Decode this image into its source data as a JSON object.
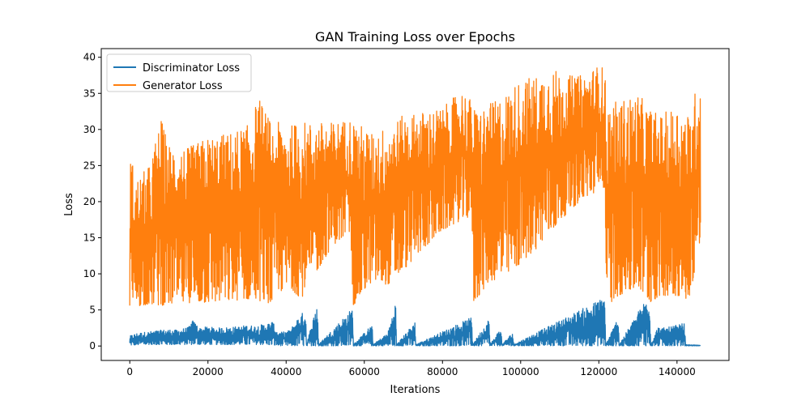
{
  "chart_data": {
    "type": "line",
    "title": "GAN Training Loss over Epochs",
    "xlabel": "Iterations",
    "ylabel": "Loss",
    "xlim": [
      -7300,
      153300
    ],
    "ylim": [
      -2.0,
      41.2
    ],
    "xticks": [
      0,
      20000,
      40000,
      60000,
      80000,
      100000,
      120000,
      140000
    ],
    "xtick_labels": [
      "0",
      "20000",
      "40000",
      "60000",
      "80000",
      "100000",
      "120000",
      "140000"
    ],
    "yticks": [
      0,
      5,
      10,
      15,
      20,
      25,
      30,
      35,
      40
    ],
    "ytick_labels": [
      "0",
      "5",
      "10",
      "15",
      "20",
      "25",
      "30",
      "35",
      "40"
    ],
    "legend_position": "top-left",
    "grid": false,
    "series": [
      {
        "name": "Discriminator Loss",
        "color": "#1f77b4",
        "x": [
          0,
          2000,
          5000,
          8000,
          10000,
          12000,
          15000,
          16000,
          18000,
          20000,
          22000,
          25000,
          28000,
          30000,
          32000,
          35000,
          36500,
          38000,
          41000,
          43000,
          45000,
          45200,
          48000,
          48300,
          57000,
          57200,
          62000,
          62200,
          66000,
          68000,
          68300,
          73000,
          73200,
          87500,
          87700,
          92000,
          92200,
          95000,
          95200,
          98000,
          98200,
          121500,
          121800,
          125000,
          125200,
          133000,
          133300,
          135000,
          137000,
          142000,
          142200,
          146000
        ],
        "low": [
          0.1,
          0.15,
          0.2,
          0.2,
          0.2,
          0.2,
          0.2,
          0.2,
          0.2,
          0.2,
          0.2,
          0.2,
          0.2,
          0.2,
          0.2,
          0.2,
          0.1,
          0.05,
          0.03,
          0.03,
          0.03,
          0.03,
          0.03,
          0.03,
          0.03,
          0.03,
          0.03,
          0.03,
          0.03,
          0.03,
          0.03,
          0.03,
          0.03,
          0.03,
          0.03,
          0.03,
          0.03,
          0.03,
          0.03,
          0.03,
          0.03,
          0.03,
          0.03,
          0.03,
          0.03,
          0.03,
          0.03,
          0.03,
          0.03,
          0.03,
          0.03,
          0.03
        ],
        "high": [
          1.4,
          1.8,
          2.0,
          2.2,
          2.3,
          2.2,
          2.6,
          3.6,
          2.5,
          2.7,
          2.5,
          2.6,
          2.7,
          2.9,
          2.8,
          3.1,
          3.4,
          1.8,
          2.2,
          3.9,
          5.1,
          0.2,
          6.1,
          0.2,
          5.3,
          0.2,
          3.0,
          0.2,
          1.8,
          6.1,
          0.2,
          3.4,
          0.2,
          4.0,
          0.2,
          3.9,
          0.2,
          2.6,
          0.2,
          1.9,
          0.2,
          6.8,
          0.2,
          4.1,
          0.2,
          7.5,
          0.2,
          2.6,
          2.5,
          3.2,
          0.2,
          0.1
        ]
      },
      {
        "name": "Generator Loss",
        "color": "#ff7f0e",
        "x": [
          0,
          1500,
          5000,
          8000,
          10000,
          15000,
          20000,
          25000,
          30000,
          33000,
          37000,
          38000,
          41000,
          44000,
          45000,
          48000,
          52000,
          56500,
          57000,
          62000,
          66000,
          70000,
          75000,
          80000,
          85000,
          87500,
          88000,
          92000,
          96000,
          100000,
          104000,
          108000,
          112000,
          116000,
          120000,
          121500,
          122000,
          125000,
          130000,
          133000,
          136000,
          140000,
          143000,
          146000
        ],
        "low": [
          5.2,
          5.5,
          5.8,
          5.6,
          5.8,
          6.0,
          6.0,
          6.2,
          6.5,
          6.3,
          5.8,
          7.5,
          8.0,
          6.5,
          8.5,
          10.5,
          14.0,
          15.8,
          5.5,
          9.0,
          8.5,
          10.5,
          13.5,
          16.0,
          17.5,
          18.0,
          6.0,
          9.0,
          9.5,
          11.5,
          13.5,
          16.0,
          18.5,
          20.5,
          21.5,
          22.0,
          5.5,
          7.0,
          8.0,
          6.0,
          7.0,
          7.0,
          6.5,
          14.0
        ],
        "high": [
          27.5,
          23.0,
          25.0,
          31.5,
          28.0,
          27.5,
          29.0,
          29.5,
          30.5,
          34.5,
          30.0,
          31.0,
          30.5,
          31.5,
          31.0,
          31.0,
          31.0,
          31.5,
          31.5,
          29.5,
          30.5,
          32.0,
          32.5,
          33.0,
          35.5,
          34.0,
          33.0,
          33.5,
          35.0,
          37.0,
          37.5,
          38.5,
          37.5,
          37.5,
          39.0,
          38.5,
          33.5,
          34.0,
          35.0,
          33.0,
          32.0,
          33.5,
          32.0,
          38.0
        ]
      }
    ]
  }
}
